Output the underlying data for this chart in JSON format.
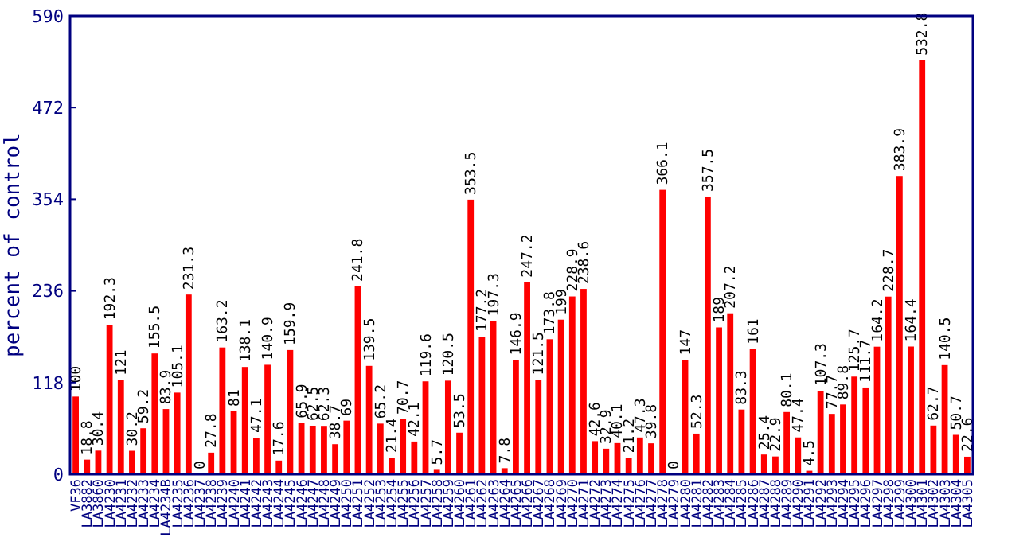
{
  "chart_data": {
    "type": "bar",
    "ylabel": "percent of control",
    "categories": [
      "VF36",
      "LA3882",
      "LA3860",
      "LA4230",
      "LA4231",
      "LA4232",
      "LA4233",
      "LA4234",
      "LA4234B",
      "LA4235",
      "LA4236",
      "LA4237",
      "LA4238",
      "LA4239",
      "LA4240",
      "LA4241",
      "LA4242",
      "LA4243",
      "LA4244",
      "LA4245",
      "LA4246",
      "LA4247",
      "LA4248",
      "LA4249",
      "LA4250",
      "LA4251",
      "LA4252",
      "LA4253",
      "LA4254",
      "LA4255",
      "LA4256",
      "LA4257",
      "LA4258",
      "LA4259",
      "LA4260",
      "LA4261",
      "LA4262",
      "LA4263",
      "LA4264",
      "LA4265",
      "LA4266",
      "LA4267",
      "LA4268",
      "LA4269",
      "LA4270",
      "LA4271",
      "LA4272",
      "LA4273",
      "LA4274",
      "LA4275",
      "LA4276",
      "LA4277",
      "LA4278",
      "LA4279",
      "LA4280",
      "LA4281",
      "LA4282",
      "LA4283",
      "LA4284",
      "LA4285",
      "LA4286",
      "LA4287",
      "LA4288",
      "LA4289",
      "LA4290",
      "LA4291",
      "LA4292",
      "LA4293",
      "LA4294",
      "LA4295",
      "LA4296",
      "LA4297",
      "LA4298",
      "LA4299",
      "LA4300",
      "LA4301",
      "LA4302",
      "LA4303",
      "LA4304",
      "LA4305"
    ],
    "values": [
      100,
      18.8,
      30.4,
      192.3,
      121,
      30.2,
      59.2,
      155.5,
      83.9,
      105.1,
      231.3,
      0,
      27.8,
      163.2,
      81,
      138.1,
      47.1,
      140.9,
      17.6,
      159.9,
      65.9,
      62.5,
      62.3,
      38.7,
      69,
      241.8,
      139.5,
      65.2,
      21.4,
      70.7,
      42.1,
      119.6,
      5.7,
      120.5,
      53.5,
      353.5,
      177.2,
      197.3,
      7.8,
      146.9,
      247.2,
      121.5,
      173.8,
      199,
      228.9,
      238.6,
      42.6,
      32.9,
      40.1,
      21.2,
      47.3,
      39.8,
      366.1,
      0,
      147,
      52.3,
      357.5,
      189,
      207.2,
      83.3,
      161,
      25.4,
      22.9,
      80.1,
      47.4,
      4.5,
      107.3,
      77.7,
      89.8,
      125.7,
      111.7,
      164.2,
      228.7,
      383.9,
      164.4,
      532.8,
      62.7,
      140.5,
      50.7,
      22.6
    ],
    "color": "#ff0000",
    "ylim": [
      0,
      590
    ],
    "yticks": [
      0,
      118,
      236,
      354,
      472,
      590
    ],
    "data_labels": true
  }
}
